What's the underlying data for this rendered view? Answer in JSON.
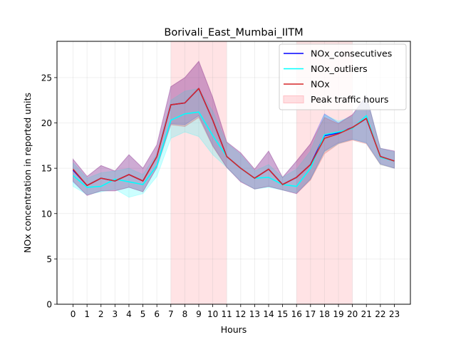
{
  "chart_data": {
    "type": "line",
    "title": "Borivali_East_Mumbai_IITM",
    "xlabel": "Hours",
    "ylabel": "NOx concentration in reported units",
    "x": [
      0,
      1,
      2,
      3,
      4,
      5,
      6,
      7,
      8,
      9,
      10,
      11,
      12,
      13,
      14,
      15,
      16,
      17,
      18,
      19,
      20,
      21,
      22,
      23
    ],
    "x_ticks": [
      "0",
      "1",
      "2",
      "3",
      "4",
      "5",
      "6",
      "7",
      "8",
      "9",
      "10",
      "11",
      "12",
      "13",
      "14",
      "15",
      "16",
      "17",
      "18",
      "19",
      "20",
      "21",
      "22",
      "23"
    ],
    "xlim": [
      -1.15,
      24.15
    ],
    "ylim": [
      0,
      29
    ],
    "y_ticks": [
      0,
      5,
      10,
      15,
      20,
      25
    ],
    "grid": true,
    "legend_position": "top-right",
    "peak_spans": [
      [
        7,
        11
      ],
      [
        16,
        20
      ]
    ],
    "series": [
      {
        "name": "NOx_consecutives",
        "color": "#0000ff",
        "values": [
          14.8,
          13.1,
          13.9,
          13.6,
          14.3,
          13.6,
          16.3,
          22.0,
          22.2,
          23.8,
          20.3,
          16.3,
          15.0,
          13.9,
          14.9,
          13.2,
          14.0,
          15.4,
          18.6,
          18.9,
          19.5,
          20.5,
          16.3,
          15.8
        ],
        "band_low": [
          13.5,
          12.0,
          12.5,
          12.5,
          12.9,
          12.4,
          15.1,
          19.9,
          19.8,
          20.8,
          17.5,
          15.1,
          13.5,
          12.7,
          13.0,
          12.6,
          12.2,
          13.8,
          16.9,
          17.8,
          18.2,
          17.8,
          15.5,
          15.0
        ],
        "band_high": [
          16.0,
          14.1,
          15.3,
          14.7,
          16.5,
          15.0,
          17.6,
          24.0,
          25.0,
          26.8,
          22.8,
          17.9,
          16.7,
          14.9,
          16.9,
          14.0,
          15.8,
          17.7,
          21.0,
          20.0,
          20.9,
          23.0,
          17.2,
          16.9
        ]
      },
      {
        "name": "NOx_outliers",
        "color": "#00ffff",
        "values": [
          14.2,
          12.9,
          13.0,
          13.8,
          13.5,
          13.2,
          15.3,
          20.3,
          21.0,
          21.2,
          18.6,
          16.3,
          15.0,
          13.9,
          14.0,
          13.2,
          13.0,
          15.0,
          18.7,
          19.0,
          19.4,
          20.8,
          16.2,
          15.8
        ],
        "band_low": [
          13.0,
          12.1,
          12.4,
          12.7,
          11.8,
          12.2,
          14.1,
          18.3,
          19.0,
          18.5,
          16.5,
          15.1,
          13.6,
          12.7,
          12.9,
          12.6,
          12.3,
          13.8,
          16.8,
          17.7,
          18.2,
          17.8,
          15.4,
          15.0
        ],
        "band_high": [
          15.6,
          13.9,
          14.5,
          14.7,
          15.0,
          14.3,
          16.6,
          22.5,
          23.5,
          23.8,
          21.3,
          17.8,
          16.5,
          14.7,
          15.4,
          14.0,
          14.9,
          16.9,
          20.9,
          20.2,
          20.7,
          23.0,
          17.2,
          16.8
        ]
      },
      {
        "name": "NOx",
        "color": "#d62728",
        "values": [
          14.9,
          13.1,
          13.9,
          13.6,
          14.3,
          13.6,
          16.3,
          22.0,
          22.2,
          23.8,
          20.3,
          16.3,
          15.0,
          13.9,
          14.9,
          13.2,
          14.0,
          15.4,
          18.3,
          18.8,
          19.5,
          20.5,
          16.3,
          15.8
        ],
        "band_low": [
          13.6,
          12.0,
          12.5,
          12.5,
          12.9,
          12.4,
          15.1,
          19.8,
          19.6,
          20.6,
          17.4,
          15.1,
          13.5,
          12.7,
          13.0,
          12.6,
          12.2,
          13.7,
          16.6,
          17.7,
          18.1,
          17.7,
          15.4,
          15.0
        ],
        "band_high": [
          16.0,
          14.1,
          15.3,
          14.7,
          16.5,
          15.0,
          17.6,
          24.0,
          25.0,
          26.8,
          22.8,
          17.9,
          16.7,
          14.9,
          16.9,
          14.0,
          15.8,
          17.7,
          20.6,
          19.9,
          20.9,
          23.0,
          17.2,
          16.9
        ]
      }
    ],
    "legend": [
      {
        "label": "NOx_consecutives",
        "kind": "line",
        "color": "#0000ff"
      },
      {
        "label": "NOx_outliers",
        "kind": "line",
        "color": "#00ffff"
      },
      {
        "label": "NOx",
        "kind": "line",
        "color": "#d62728"
      },
      {
        "label": "Peak traffic hours",
        "kind": "patch",
        "color": "#ffc0c6"
      }
    ]
  }
}
